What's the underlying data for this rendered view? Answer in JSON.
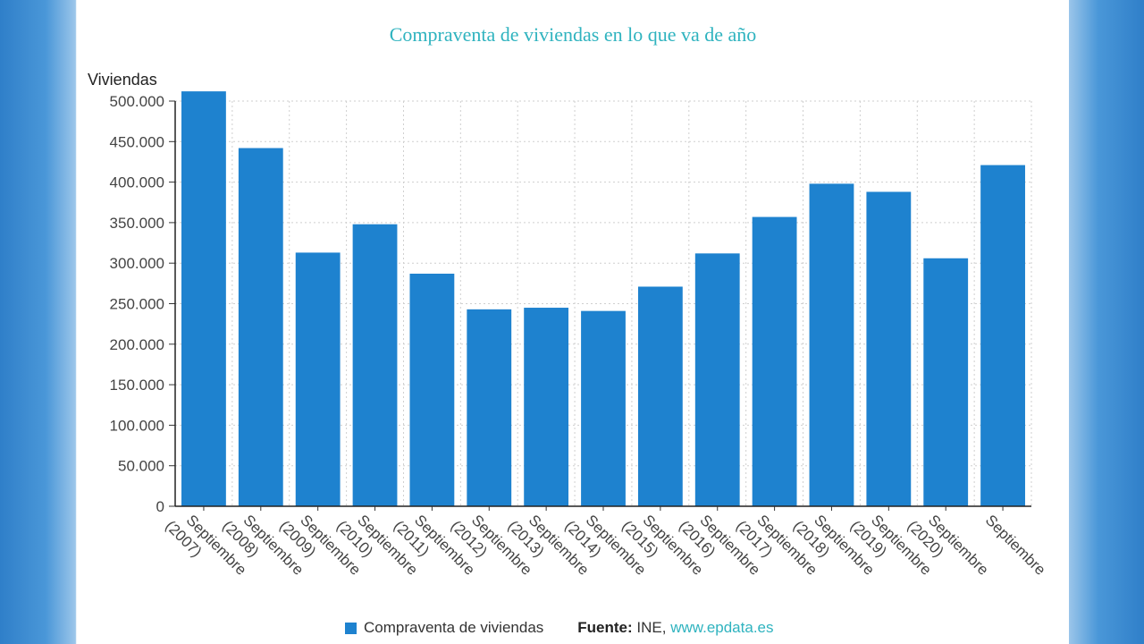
{
  "chart_data": {
    "type": "bar",
    "title": "Compraventa de viviendas en lo que va de año",
    "ylabel": "Viviendas",
    "xlabel": "",
    "ylim": [
      0,
      500000
    ],
    "yticks": [
      0,
      50000,
      100000,
      150000,
      200000,
      250000,
      300000,
      350000,
      400000,
      450000,
      500000
    ],
    "ytick_labels": [
      "0",
      "50.000",
      "100.000",
      "150.000",
      "200.000",
      "250.000",
      "300.000",
      "350.000",
      "400.000",
      "450.000",
      "500.000"
    ],
    "categories": [
      {
        "line1": "Septiembre",
        "line2": "(2007)"
      },
      {
        "line1": "Septiembre",
        "line2": "(2008)"
      },
      {
        "line1": "Septiembre",
        "line2": "(2009)"
      },
      {
        "line1": "Septiembre",
        "line2": "(2010)"
      },
      {
        "line1": "Septiembre",
        "line2": "(2011)"
      },
      {
        "line1": "Septiembre",
        "line2": "(2012)"
      },
      {
        "line1": "Septiembre",
        "line2": "(2013)"
      },
      {
        "line1": "Septiembre",
        "line2": "(2014)"
      },
      {
        "line1": "Septiembre",
        "line2": "(2015)"
      },
      {
        "line1": "Septiembre",
        "line2": "(2016)"
      },
      {
        "line1": "Septiembre",
        "line2": "(2017)"
      },
      {
        "line1": "Septiembre",
        "line2": "(2018)"
      },
      {
        "line1": "Septiembre",
        "line2": "(2019)"
      },
      {
        "line1": "Septiembre",
        "line2": "(2020)"
      },
      {
        "line1": "Septiembre",
        "line2": ""
      }
    ],
    "series": [
      {
        "name": "Compraventa de viviendas",
        "color": "#1e82cf",
        "values": [
          512000,
          442000,
          313000,
          348000,
          287000,
          243000,
          245000,
          241000,
          271000,
          312000,
          357000,
          398000,
          388000,
          306000,
          421000
        ]
      }
    ],
    "grid": true,
    "legend_position": "bottom"
  },
  "legend": {
    "series_label": "Compraventa de viviendas",
    "source_label": "Fuente:",
    "source_value": "INE,",
    "source_link": "www.epdata.es"
  }
}
